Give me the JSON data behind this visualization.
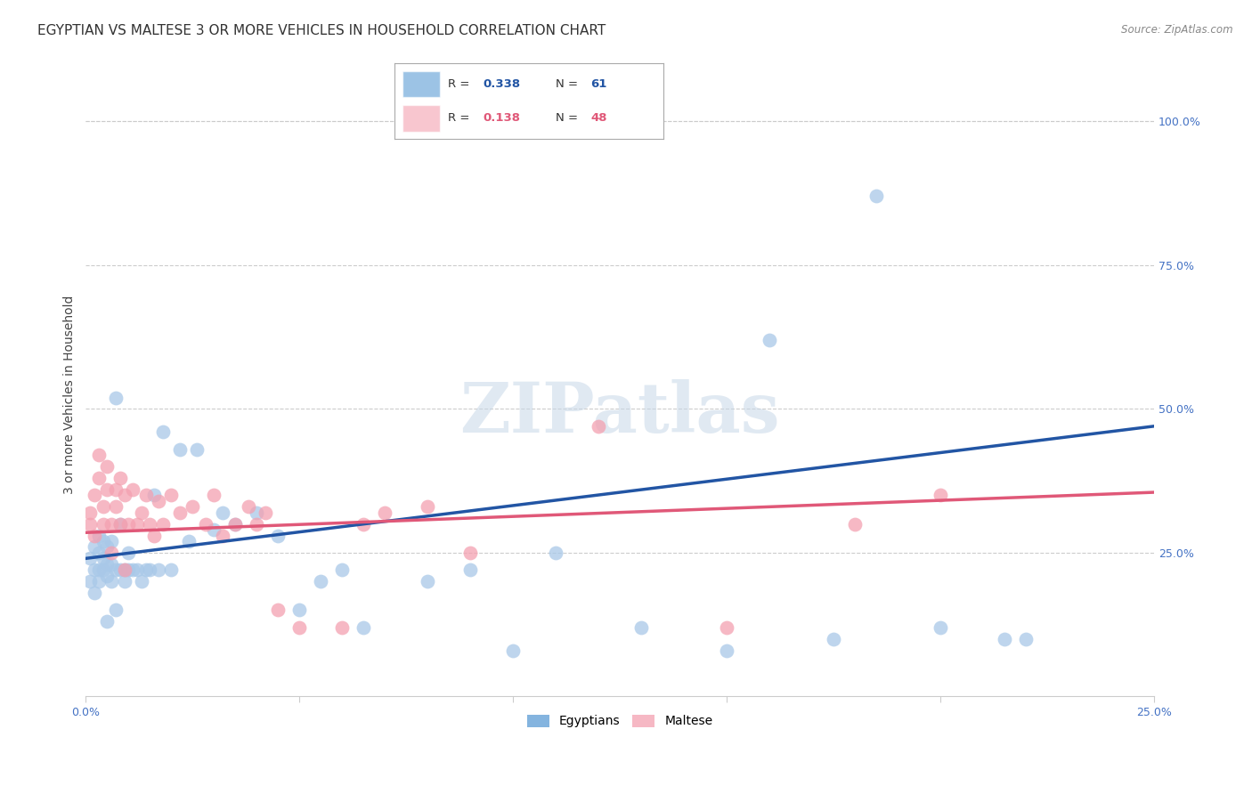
{
  "title": "EGYPTIAN VS MALTESE 3 OR MORE VEHICLES IN HOUSEHOLD CORRELATION CHART",
  "source": "Source: ZipAtlas.com",
  "ylabel": "3 or more Vehicles in Household",
  "xlim": [
    0.0,
    0.25
  ],
  "ylim": [
    0.0,
    1.05
  ],
  "background_color": "#ffffff",
  "grid_color": "#cccccc",
  "scatter_color1": "#a8c8e8",
  "scatter_color2": "#f4a0b0",
  "line_color1": "#2255a4",
  "line_color2": "#e05878",
  "legend_color1": "#5b9bd5",
  "legend_color2": "#f4a0b0",
  "tick_color": "#4472c4",
  "title_fontsize": 11,
  "axis_label_fontsize": 10,
  "tick_fontsize": 9,
  "eg_x": [
    0.001,
    0.001,
    0.002,
    0.002,
    0.002,
    0.003,
    0.003,
    0.003,
    0.003,
    0.004,
    0.004,
    0.004,
    0.005,
    0.005,
    0.005,
    0.006,
    0.006,
    0.006,
    0.007,
    0.007,
    0.008,
    0.008,
    0.009,
    0.009,
    0.01,
    0.01,
    0.011,
    0.012,
    0.013,
    0.014,
    0.015,
    0.016,
    0.017,
    0.018,
    0.02,
    0.022,
    0.024,
    0.026,
    0.03,
    0.032,
    0.035,
    0.04,
    0.045,
    0.05,
    0.055,
    0.06,
    0.065,
    0.08,
    0.09,
    0.1,
    0.11,
    0.13,
    0.15,
    0.16,
    0.175,
    0.185,
    0.2,
    0.215,
    0.22,
    0.005,
    0.007
  ],
  "eg_y": [
    0.2,
    0.24,
    0.18,
    0.22,
    0.26,
    0.2,
    0.22,
    0.25,
    0.28,
    0.22,
    0.24,
    0.27,
    0.21,
    0.23,
    0.26,
    0.2,
    0.23,
    0.27,
    0.22,
    0.52,
    0.22,
    0.3,
    0.2,
    0.22,
    0.22,
    0.25,
    0.22,
    0.22,
    0.2,
    0.22,
    0.22,
    0.35,
    0.22,
    0.46,
    0.22,
    0.43,
    0.27,
    0.43,
    0.29,
    0.32,
    0.3,
    0.32,
    0.28,
    0.15,
    0.2,
    0.22,
    0.12,
    0.2,
    0.22,
    0.08,
    0.25,
    0.12,
    0.08,
    0.62,
    0.1,
    0.87,
    0.12,
    0.1,
    0.1,
    0.13,
    0.15
  ],
  "mt_x": [
    0.001,
    0.001,
    0.002,
    0.002,
    0.003,
    0.003,
    0.004,
    0.004,
    0.005,
    0.005,
    0.006,
    0.006,
    0.007,
    0.007,
    0.008,
    0.008,
    0.009,
    0.009,
    0.01,
    0.011,
    0.012,
    0.013,
    0.014,
    0.015,
    0.016,
    0.017,
    0.018,
    0.02,
    0.022,
    0.025,
    0.028,
    0.03,
    0.032,
    0.035,
    0.038,
    0.04,
    0.042,
    0.045,
    0.05,
    0.06,
    0.065,
    0.07,
    0.08,
    0.09,
    0.12,
    0.15,
    0.18,
    0.2
  ],
  "mt_y": [
    0.3,
    0.32,
    0.28,
    0.35,
    0.42,
    0.38,
    0.3,
    0.33,
    0.36,
    0.4,
    0.3,
    0.25,
    0.33,
    0.36,
    0.38,
    0.3,
    0.35,
    0.22,
    0.3,
    0.36,
    0.3,
    0.32,
    0.35,
    0.3,
    0.28,
    0.34,
    0.3,
    0.35,
    0.32,
    0.33,
    0.3,
    0.35,
    0.28,
    0.3,
    0.33,
    0.3,
    0.32,
    0.15,
    0.12,
    0.12,
    0.3,
    0.32,
    0.33,
    0.25,
    0.47,
    0.12,
    0.3,
    0.35
  ],
  "eg_line_x": [
    0.0,
    0.25
  ],
  "eg_line_y": [
    0.24,
    0.47
  ],
  "mt_line_x": [
    0.0,
    0.25
  ],
  "mt_line_y": [
    0.285,
    0.355
  ]
}
